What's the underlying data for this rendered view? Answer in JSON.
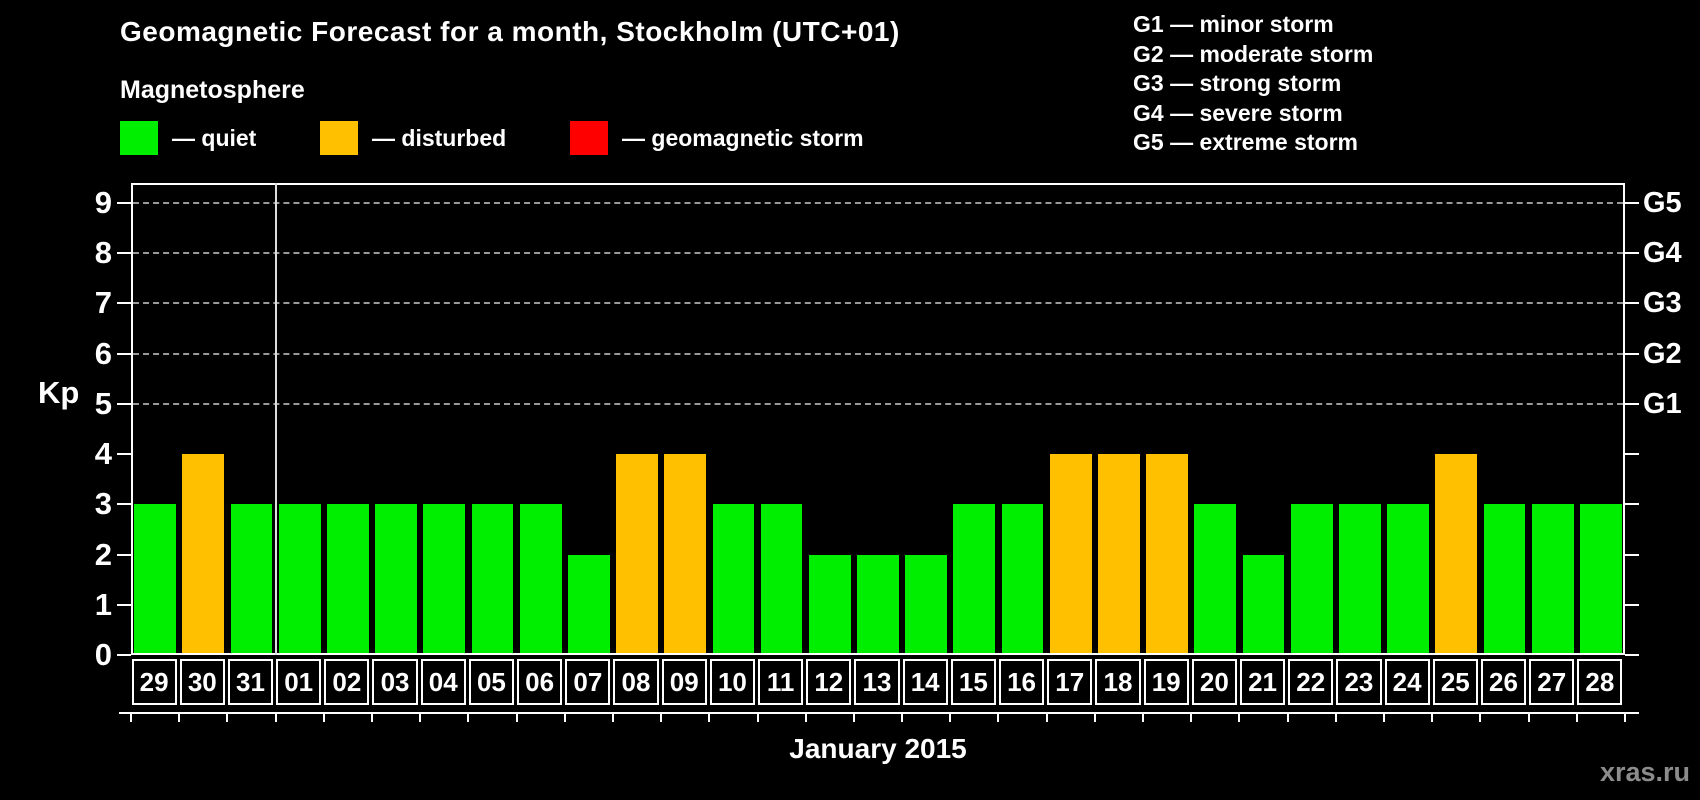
{
  "header": {
    "title": "Geomagnetic Forecast for a month, Stockholm (UTC+01)",
    "subtitle": "Magnetosphere"
  },
  "legend": {
    "items": [
      {
        "status": "quiet",
        "label": "— quiet",
        "color": "#00EE00"
      },
      {
        "status": "disturbed",
        "label": "— disturbed",
        "color": "#FFC000"
      },
      {
        "status": "storm",
        "label": "— geomagnetic storm",
        "color": "#FF0000"
      }
    ]
  },
  "storm_scale": {
    "items": [
      "G1 — minor storm",
      "G2 — moderate storm",
      "G3 — strong storm",
      "G4 — severe storm",
      "G5 — extreme storm"
    ]
  },
  "footer": {
    "xaxis_title": "January 2015",
    "watermark": "xras.ru"
  },
  "theme": {
    "background": "#000000",
    "text": "#FFFFFF",
    "grid": "#999999",
    "axis": "#FFFFFF",
    "month_separator": "#DDDDDD",
    "watermark_color": "#8C8C8C"
  },
  "chart_data": {
    "type": "bar",
    "title": "Geomagnetic Forecast for a month, Stockholm (UTC+01)",
    "subtitle": "Magnetosphere",
    "xlabel": "January 2015",
    "ylabel": "Kp",
    "ylim": [
      0,
      9.4
    ],
    "yticks": [
      0,
      1,
      2,
      3,
      4,
      5,
      6,
      7,
      8,
      9
    ],
    "grid_values": [
      5,
      6,
      7,
      8,
      9
    ],
    "grid_style": "dashed horizontal lines at Kp 5-9 only",
    "legend_position": "top-left",
    "right_axis": [
      {
        "label": "G1",
        "value": 5
      },
      {
        "label": "G2",
        "value": 6
      },
      {
        "label": "G3",
        "value": 7
      },
      {
        "label": "G4",
        "value": 8
      },
      {
        "label": "G5",
        "value": 9
      }
    ],
    "month_boundary_index": 3,
    "categories": [
      "29",
      "30",
      "31",
      "01",
      "02",
      "03",
      "04",
      "05",
      "06",
      "07",
      "08",
      "09",
      "10",
      "11",
      "12",
      "13",
      "14",
      "15",
      "16",
      "17",
      "18",
      "19",
      "20",
      "21",
      "22",
      "23",
      "24",
      "25",
      "26",
      "27",
      "28"
    ],
    "values": [
      3,
      4,
      3,
      3,
      3,
      3,
      3,
      3,
      3,
      2,
      4,
      4,
      3,
      3,
      2,
      2,
      2,
      3,
      3,
      4,
      4,
      4,
      3,
      2,
      3,
      3,
      3,
      4,
      3,
      3,
      3
    ],
    "statuses": [
      "quiet",
      "disturbed",
      "quiet",
      "quiet",
      "quiet",
      "quiet",
      "quiet",
      "quiet",
      "quiet",
      "quiet",
      "disturbed",
      "disturbed",
      "quiet",
      "quiet",
      "quiet",
      "quiet",
      "quiet",
      "quiet",
      "quiet",
      "disturbed",
      "disturbed",
      "disturbed",
      "quiet",
      "quiet",
      "quiet",
      "quiet",
      "quiet",
      "disturbed",
      "quiet",
      "quiet",
      "quiet"
    ],
    "colors": {
      "quiet": "#00EE00",
      "disturbed": "#FFC000",
      "storm": "#FF0000"
    }
  }
}
